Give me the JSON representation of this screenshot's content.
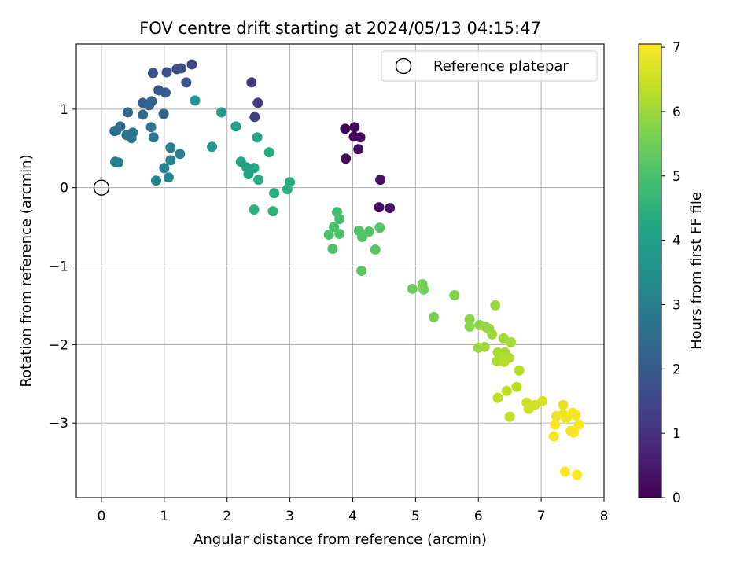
{
  "chart_data": {
    "type": "scatter",
    "title": "FOV centre drift starting at 2024/05/13 04:15:47",
    "xlabel": "Angular distance from reference (arcmin)",
    "ylabel": "Rotation from reference (arcmin)",
    "xlim": [
      -0.4,
      8.0
    ],
    "ylim": [
      -3.95,
      1.83
    ],
    "x_ticks": [
      0,
      1,
      2,
      3,
      4,
      5,
      6,
      7,
      8
    ],
    "x_tick_labels": [
      "0",
      "1",
      "2",
      "3",
      "4",
      "5",
      "6",
      "7",
      "8"
    ],
    "y_ticks": [
      1,
      0,
      -1,
      -2,
      -3
    ],
    "y_tick_labels": [
      "1",
      "0",
      "−1",
      "−2",
      "−3"
    ],
    "grid": true,
    "legend": {
      "placement": "top-right",
      "label": "Reference platepar",
      "marker": "open-circle"
    },
    "reference_point": {
      "x": 0,
      "y": 0
    },
    "colorbar": {
      "label": "Hours from first FF file",
      "min": 0,
      "max": 7.05,
      "ticks": [
        0,
        1,
        2,
        3,
        4,
        5,
        6,
        7
      ],
      "tick_labels": [
        "0",
        "1",
        "2",
        "3",
        "4",
        "5",
        "6",
        "7"
      ],
      "colormap": "viridis"
    },
    "points": [
      {
        "x": 3.88,
        "y": 0.75,
        "c": 0.1
      },
      {
        "x": 4.03,
        "y": 0.77,
        "c": 0.12
      },
      {
        "x": 4.02,
        "y": 0.65,
        "c": 0.15
      },
      {
        "x": 4.12,
        "y": 0.64,
        "c": 0.18
      },
      {
        "x": 4.09,
        "y": 0.49,
        "c": 0.2
      },
      {
        "x": 3.89,
        "y": 0.37,
        "c": 0.22
      },
      {
        "x": 4.44,
        "y": 0.1,
        "c": 0.28
      },
      {
        "x": 4.42,
        "y": -0.25,
        "c": 0.32
      },
      {
        "x": 4.59,
        "y": -0.26,
        "c": 0.35
      },
      {
        "x": 2.39,
        "y": 1.34,
        "c": 1.1
      },
      {
        "x": 2.49,
        "y": 1.08,
        "c": 1.2
      },
      {
        "x": 2.44,
        "y": 0.9,
        "c": 1.3
      },
      {
        "x": 1.44,
        "y": 1.57,
        "c": 1.55
      },
      {
        "x": 1.27,
        "y": 1.52,
        "c": 1.65
      },
      {
        "x": 1.2,
        "y": 1.51,
        "c": 1.7
      },
      {
        "x": 1.04,
        "y": 1.47,
        "c": 1.75
      },
      {
        "x": 0.82,
        "y": 1.46,
        "c": 1.8
      },
      {
        "x": 1.35,
        "y": 1.34,
        "c": 1.85
      },
      {
        "x": 0.91,
        "y": 1.24,
        "c": 1.95
      },
      {
        "x": 1.02,
        "y": 1.21,
        "c": 2.0
      },
      {
        "x": 0.66,
        "y": 1.08,
        "c": 2.1
      },
      {
        "x": 0.8,
        "y": 1.1,
        "c": 2.2
      },
      {
        "x": 0.76,
        "y": 1.05,
        "c": 2.25
      },
      {
        "x": 0.99,
        "y": 0.94,
        "c": 2.3
      },
      {
        "x": 0.42,
        "y": 0.96,
        "c": 2.4
      },
      {
        "x": 0.66,
        "y": 0.93,
        "c": 2.45
      },
      {
        "x": 0.3,
        "y": 0.78,
        "c": 2.5
      },
      {
        "x": 0.24,
        "y": 0.73,
        "c": 2.55
      },
      {
        "x": 0.21,
        "y": 0.72,
        "c": 2.6
      },
      {
        "x": 0.79,
        "y": 0.77,
        "c": 2.65
      },
      {
        "x": 0.4,
        "y": 0.67,
        "c": 2.7
      },
      {
        "x": 0.5,
        "y": 0.7,
        "c": 2.75
      },
      {
        "x": 0.48,
        "y": 0.63,
        "c": 2.8
      },
      {
        "x": 0.83,
        "y": 0.64,
        "c": 2.85
      },
      {
        "x": 0.22,
        "y": 0.33,
        "c": 2.9
      },
      {
        "x": 0.27,
        "y": 0.32,
        "c": 2.95
      },
      {
        "x": 1.1,
        "y": 0.51,
        "c": 3.0
      },
      {
        "x": 1.25,
        "y": 0.43,
        "c": 3.05
      },
      {
        "x": 1.1,
        "y": 0.35,
        "c": 3.1
      },
      {
        "x": 1.0,
        "y": 0.25,
        "c": 3.15
      },
      {
        "x": 1.07,
        "y": 0.13,
        "c": 3.2
      },
      {
        "x": 0.87,
        "y": 0.09,
        "c": 3.2
      },
      {
        "x": 1.49,
        "y": 1.11,
        "c": 3.75
      },
      {
        "x": 1.76,
        "y": 0.52,
        "c": 3.8
      },
      {
        "x": 1.91,
        "y": 0.96,
        "c": 3.85
      },
      {
        "x": 2.14,
        "y": 0.78,
        "c": 3.95
      },
      {
        "x": 2.48,
        "y": 0.64,
        "c": 4.05
      },
      {
        "x": 2.22,
        "y": 0.33,
        "c": 4.1
      },
      {
        "x": 2.31,
        "y": 0.26,
        "c": 4.15
      },
      {
        "x": 2.34,
        "y": 0.17,
        "c": 4.2
      },
      {
        "x": 2.43,
        "y": 0.25,
        "c": 4.25
      },
      {
        "x": 2.67,
        "y": 0.45,
        "c": 4.3
      },
      {
        "x": 2.5,
        "y": 0.1,
        "c": 4.3
      },
      {
        "x": 3.0,
        "y": 0.07,
        "c": 4.35
      },
      {
        "x": 2.75,
        "y": -0.07,
        "c": 4.4
      },
      {
        "x": 2.96,
        "y": -0.02,
        "c": 4.45
      },
      {
        "x": 2.43,
        "y": -0.28,
        "c": 4.45
      },
      {
        "x": 2.73,
        "y": -0.3,
        "c": 4.5
      },
      {
        "x": 3.75,
        "y": -0.31,
        "c": 4.9
      },
      {
        "x": 3.79,
        "y": -0.4,
        "c": 4.95
      },
      {
        "x": 3.7,
        "y": -0.5,
        "c": 5.0
      },
      {
        "x": 3.62,
        "y": -0.6,
        "c": 5.0
      },
      {
        "x": 3.79,
        "y": -0.59,
        "c": 5.05
      },
      {
        "x": 3.68,
        "y": -0.78,
        "c": 5.05
      },
      {
        "x": 4.1,
        "y": -0.55,
        "c": 5.1
      },
      {
        "x": 4.26,
        "y": -0.56,
        "c": 5.1
      },
      {
        "x": 4.43,
        "y": -0.51,
        "c": 5.15
      },
      {
        "x": 4.15,
        "y": -0.63,
        "c": 5.15
      },
      {
        "x": 4.36,
        "y": -0.79,
        "c": 5.2
      },
      {
        "x": 4.14,
        "y": -1.06,
        "c": 5.25
      },
      {
        "x": 4.95,
        "y": -1.29,
        "c": 5.5
      },
      {
        "x": 5.11,
        "y": -1.23,
        "c": 5.55
      },
      {
        "x": 5.13,
        "y": -1.3,
        "c": 5.55
      },
      {
        "x": 5.29,
        "y": -1.65,
        "c": 5.6
      },
      {
        "x": 5.62,
        "y": -1.37,
        "c": 5.7
      },
      {
        "x": 5.86,
        "y": -1.68,
        "c": 5.8
      },
      {
        "x": 5.86,
        "y": -1.77,
        "c": 5.8
      },
      {
        "x": 6.02,
        "y": -1.75,
        "c": 5.85
      },
      {
        "x": 6.11,
        "y": -1.77,
        "c": 5.9
      },
      {
        "x": 6.17,
        "y": -1.8,
        "c": 5.95
      },
      {
        "x": 6.27,
        "y": -1.5,
        "c": 6.0
      },
      {
        "x": 6.22,
        "y": -1.87,
        "c": 6.0
      },
      {
        "x": 6.0,
        "y": -2.04,
        "c": 6.0
      },
      {
        "x": 6.1,
        "y": -2.03,
        "c": 6.05
      },
      {
        "x": 6.4,
        "y": -1.92,
        "c": 6.1
      },
      {
        "x": 6.52,
        "y": -1.97,
        "c": 6.1
      },
      {
        "x": 6.31,
        "y": -2.1,
        "c": 6.15
      },
      {
        "x": 6.3,
        "y": -2.21,
        "c": 6.15
      },
      {
        "x": 6.42,
        "y": -2.1,
        "c": 6.15
      },
      {
        "x": 6.4,
        "y": -2.2,
        "c": 6.2
      },
      {
        "x": 6.49,
        "y": -2.17,
        "c": 6.2
      },
      {
        "x": 6.41,
        "y": -2.22,
        "c": 6.25
      },
      {
        "x": 6.65,
        "y": -2.33,
        "c": 6.3
      },
      {
        "x": 6.61,
        "y": -2.54,
        "c": 6.3
      },
      {
        "x": 6.45,
        "y": -2.59,
        "c": 6.35
      },
      {
        "x": 6.31,
        "y": -2.68,
        "c": 6.35
      },
      {
        "x": 6.5,
        "y": -2.92,
        "c": 6.4
      },
      {
        "x": 6.77,
        "y": -2.74,
        "c": 6.5
      },
      {
        "x": 6.8,
        "y": -2.82,
        "c": 6.5
      },
      {
        "x": 6.9,
        "y": -2.77,
        "c": 6.55
      },
      {
        "x": 7.02,
        "y": -2.72,
        "c": 6.6
      },
      {
        "x": 7.35,
        "y": -2.77,
        "c": 6.8
      },
      {
        "x": 7.24,
        "y": -2.91,
        "c": 6.85
      },
      {
        "x": 7.35,
        "y": -2.89,
        "c": 6.9
      },
      {
        "x": 7.4,
        "y": -2.94,
        "c": 6.9
      },
      {
        "x": 7.5,
        "y": -2.87,
        "c": 6.95
      },
      {
        "x": 7.55,
        "y": -2.9,
        "c": 6.95
      },
      {
        "x": 7.6,
        "y": -3.02,
        "c": 7.0
      },
      {
        "x": 7.22,
        "y": -3.02,
        "c": 7.0
      },
      {
        "x": 7.47,
        "y": -3.1,
        "c": 7.0
      },
      {
        "x": 7.52,
        "y": -3.12,
        "c": 7.0
      },
      {
        "x": 7.2,
        "y": -3.17,
        "c": 7.0
      },
      {
        "x": 7.38,
        "y": -3.62,
        "c": 7.05
      },
      {
        "x": 7.57,
        "y": -3.66,
        "c": 7.05
      }
    ]
  }
}
